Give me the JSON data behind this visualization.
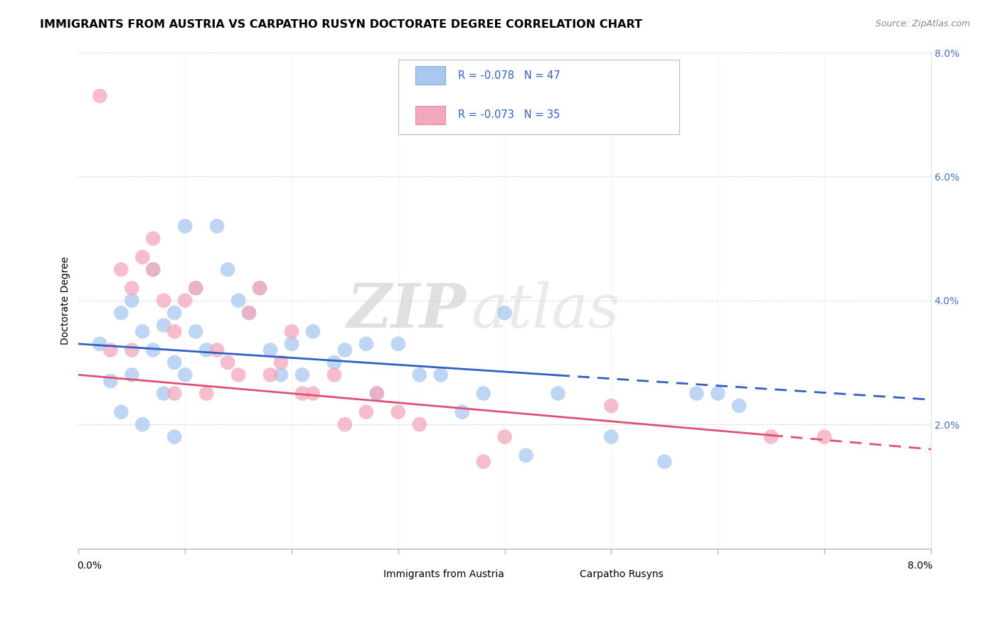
{
  "title": "IMMIGRANTS FROM AUSTRIA VS CARPATHO RUSYN DOCTORATE DEGREE CORRELATION CHART",
  "source": "Source: ZipAtlas.com",
  "ylabel": "Doctorate Degree",
  "right_yticks": [
    "8.0%",
    "6.0%",
    "4.0%",
    "2.0%"
  ],
  "right_ytick_vals": [
    0.08,
    0.06,
    0.04,
    0.02
  ],
  "xlim": [
    0.0,
    0.08
  ],
  "ylim": [
    0.0,
    0.08
  ],
  "series1_color": "#A8C8F0",
  "series2_color": "#F4A8BC",
  "series1_label": "Immigrants from Austria",
  "series2_label": "Carpatho Rusyns",
  "watermark_zip": "ZIP",
  "watermark_atlas": "atlas",
  "austria_x": [
    0.002,
    0.003,
    0.004,
    0.004,
    0.005,
    0.005,
    0.006,
    0.006,
    0.007,
    0.007,
    0.008,
    0.008,
    0.009,
    0.009,
    0.009,
    0.01,
    0.01,
    0.011,
    0.011,
    0.012,
    0.013,
    0.014,
    0.015,
    0.016,
    0.017,
    0.018,
    0.019,
    0.02,
    0.021,
    0.022,
    0.024,
    0.025,
    0.027,
    0.028,
    0.03,
    0.032,
    0.034,
    0.036,
    0.038,
    0.04,
    0.042,
    0.045,
    0.05,
    0.055,
    0.058,
    0.06,
    0.062
  ],
  "austria_y": [
    0.033,
    0.027,
    0.038,
    0.022,
    0.04,
    0.028,
    0.035,
    0.02,
    0.045,
    0.032,
    0.036,
    0.025,
    0.038,
    0.03,
    0.018,
    0.052,
    0.028,
    0.042,
    0.035,
    0.032,
    0.052,
    0.045,
    0.04,
    0.038,
    0.042,
    0.032,
    0.028,
    0.033,
    0.028,
    0.035,
    0.03,
    0.032,
    0.033,
    0.025,
    0.033,
    0.028,
    0.028,
    0.022,
    0.025,
    0.038,
    0.015,
    0.025,
    0.018,
    0.014,
    0.025,
    0.025,
    0.023
  ],
  "rusyn_x": [
    0.002,
    0.003,
    0.004,
    0.005,
    0.005,
    0.006,
    0.007,
    0.007,
    0.008,
    0.009,
    0.009,
    0.01,
    0.011,
    0.012,
    0.013,
    0.014,
    0.015,
    0.016,
    0.017,
    0.018,
    0.019,
    0.02,
    0.021,
    0.022,
    0.024,
    0.025,
    0.027,
    0.028,
    0.03,
    0.032,
    0.038,
    0.04,
    0.05,
    0.065,
    0.07
  ],
  "rusyn_y": [
    0.073,
    0.032,
    0.045,
    0.042,
    0.032,
    0.047,
    0.05,
    0.045,
    0.04,
    0.035,
    0.025,
    0.04,
    0.042,
    0.025,
    0.032,
    0.03,
    0.028,
    0.038,
    0.042,
    0.028,
    0.03,
    0.035,
    0.025,
    0.025,
    0.028,
    0.02,
    0.022,
    0.025,
    0.022,
    0.02,
    0.014,
    0.018,
    0.023,
    0.018,
    0.018
  ],
  "austria_trend_x": [
    0.0,
    0.08
  ],
  "austria_trend_y_start": 0.033,
  "austria_trend_y_end": 0.024,
  "austria_trend_solid_end": 0.045,
  "rusyn_trend_x": [
    0.0,
    0.08
  ],
  "rusyn_trend_y_start": 0.028,
  "rusyn_trend_y_end": 0.016,
  "rusyn_trend_solid_end": 0.065,
  "background_color": "#ffffff",
  "grid_color": "#cccccc"
}
